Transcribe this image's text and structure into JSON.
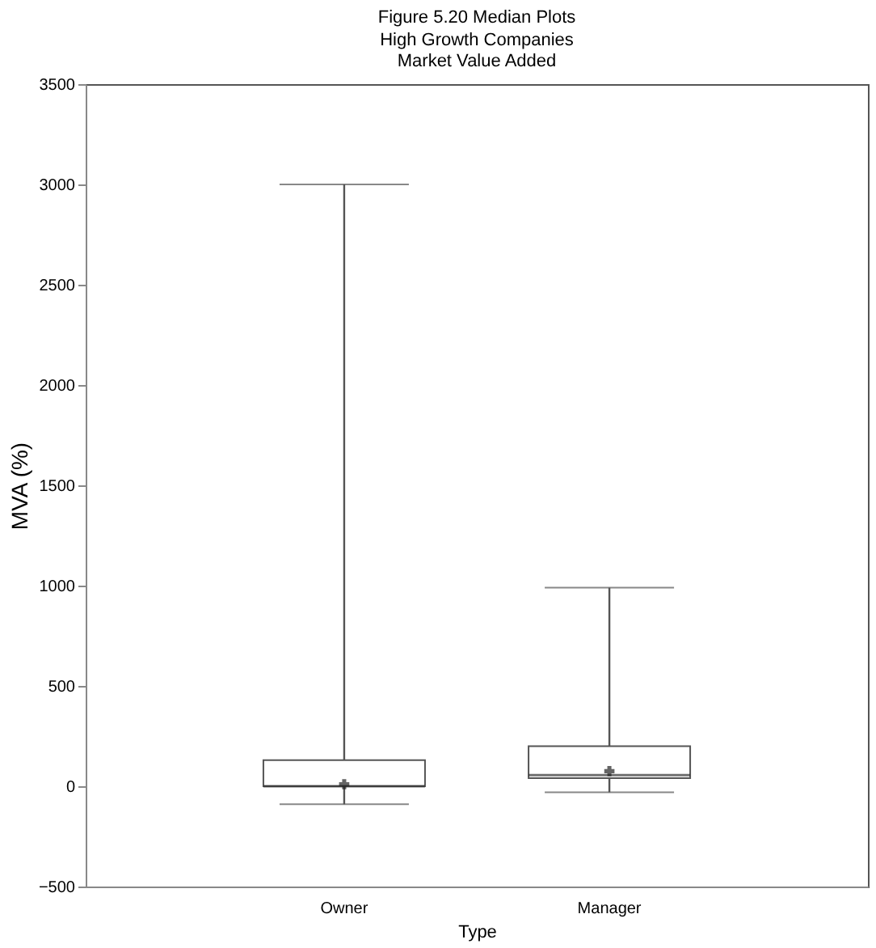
{
  "chart_data": {
    "type": "box",
    "title": "Figure 5.20 Median Plots",
    "subtitle": "High Growth Companies\nMarket Value Added",
    "xlabel": "Type",
    "ylabel": "MVA (%)",
    "categories": [
      "Owner",
      "Manager"
    ],
    "boxes": [
      {
        "low": -90,
        "q1": 0,
        "median": 0,
        "q3": 130,
        "high": 3000,
        "mean": 10
      },
      {
        "low": -30,
        "q1": 40,
        "median": 55,
        "q3": 200,
        "high": 990,
        "mean": 75
      }
    ],
    "ylim": [
      -500,
      3500
    ],
    "yticks": [
      -500,
      0,
      500,
      1000,
      1500,
      2000,
      2500,
      3000,
      3500
    ],
    "grid": false
  }
}
